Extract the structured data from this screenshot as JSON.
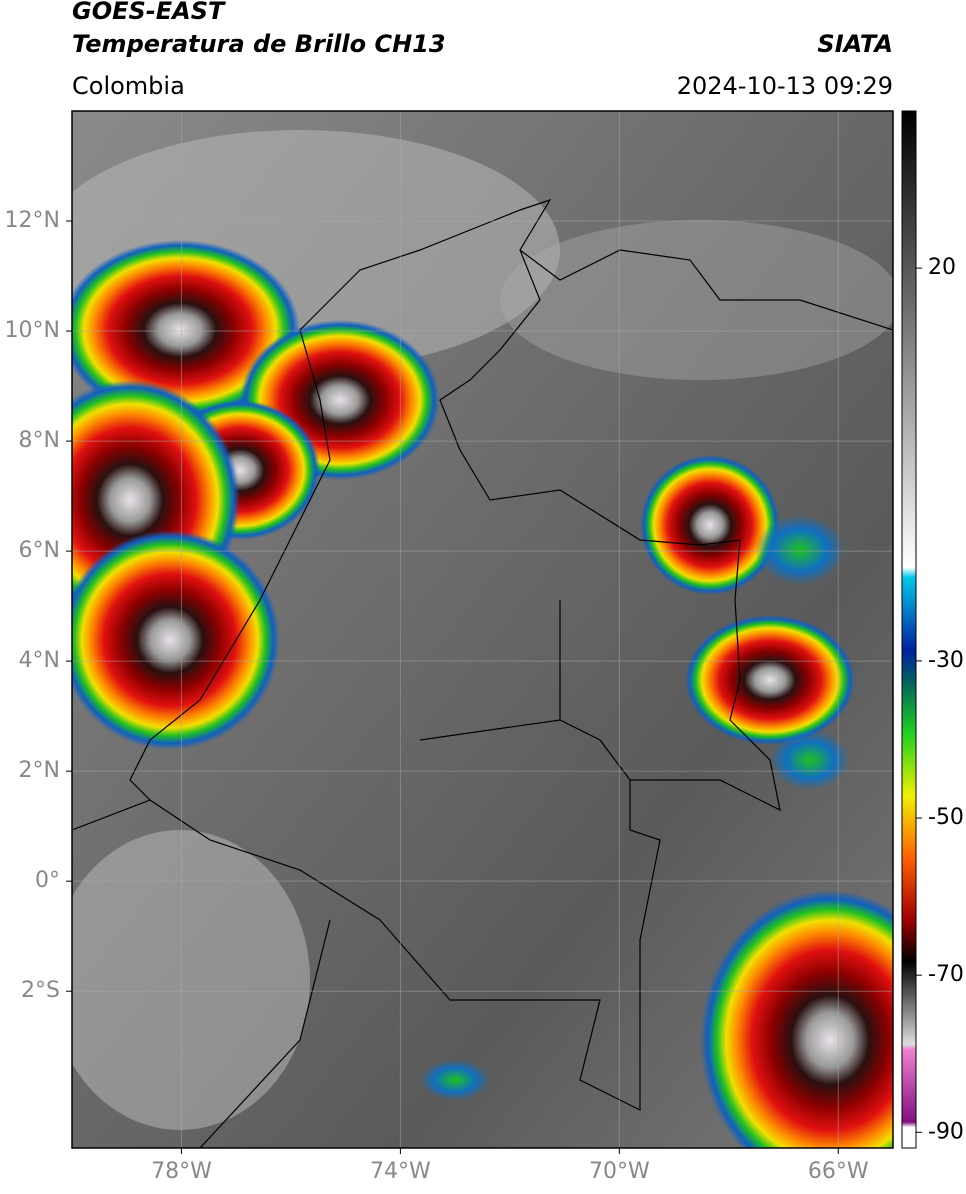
{
  "header": {
    "title": "GOES-EAST",
    "subtitle": "Temperatura de Brillo CH13",
    "source": "SIATA",
    "region": "Colombia",
    "datetime": "2024-10-13 09:29"
  },
  "map": {
    "xlim": [
      -80,
      -65
    ],
    "ylim": [
      -4.85,
      14
    ],
    "xticks": [
      {
        "value": -78,
        "label": "78°W"
      },
      {
        "value": -74,
        "label": "74°W"
      },
      {
        "value": -70,
        "label": "70°W"
      },
      {
        "value": -66,
        "label": "66°W"
      }
    ],
    "yticks": [
      {
        "value": 12,
        "label": "12°N"
      },
      {
        "value": 10,
        "label": "10°N"
      },
      {
        "value": 8,
        "label": "8°N"
      },
      {
        "value": 6,
        "label": "6°N"
      },
      {
        "value": 4,
        "label": "4°N"
      },
      {
        "value": 2,
        "label": "2°N"
      },
      {
        "value": 0,
        "label": "0°"
      },
      {
        "value": -2,
        "label": "2°S"
      }
    ],
    "grid": true
  },
  "colorbar": {
    "lim": [
      -92,
      40
    ],
    "ticks": [
      20,
      -30,
      -50,
      -70,
      -90
    ]
  }
}
